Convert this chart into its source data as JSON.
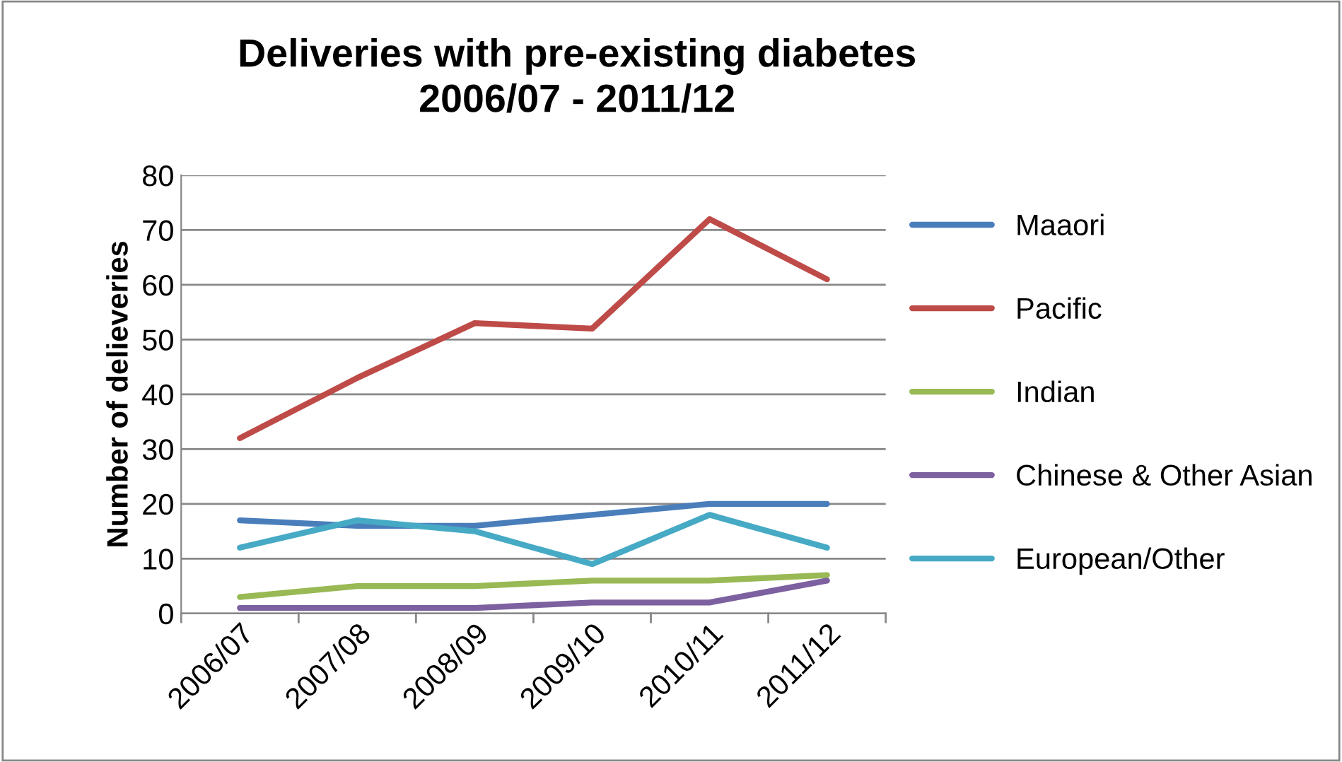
{
  "chart_data": {
    "type": "line",
    "title": "Deliveries with pre-existing diabetes\n2006/07 - 2011/12",
    "ylabel": "Number of delieveries",
    "categories": [
      "2006/07",
      "2007/08",
      "2008/09",
      "2009/10",
      "2010/11",
      "2011/12"
    ],
    "series": [
      {
        "name": "Maaori",
        "color": "#4a7ebb",
        "values": [
          17,
          16,
          16,
          18,
          20,
          20
        ]
      },
      {
        "name": "Pacific",
        "color": "#be4b48",
        "values": [
          32,
          43,
          53,
          52,
          72,
          61
        ]
      },
      {
        "name": "Indian",
        "color": "#98b954",
        "values": [
          3,
          5,
          5,
          6,
          6,
          7
        ]
      },
      {
        "name": "Chinese & Other Asian",
        "color": "#7d60a0",
        "values": [
          1,
          1,
          1,
          2,
          2,
          6
        ]
      },
      {
        "name": "European/Other",
        "color": "#46aac5",
        "values": [
          12,
          17,
          15,
          9,
          18,
          12
        ]
      }
    ],
    "ylim": [
      0,
      80
    ],
    "yticks": [
      0,
      10,
      20,
      30,
      40,
      50,
      60,
      70,
      80
    ],
    "grid": "y",
    "legend": "right",
    "marker": "none",
    "line_style": "solid"
  }
}
